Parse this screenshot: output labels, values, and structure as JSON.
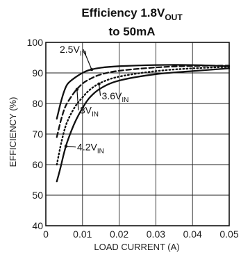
{
  "chart_data": {
    "type": "line",
    "title": {
      "line1": "Efficiency 1.8V",
      "line1_sub": "OUT",
      "line2": "to 50mA"
    },
    "xlabel": "LOAD CURRENT (A)",
    "ylabel": "EFFICIENCY (%)",
    "xlim": [
      0,
      0.05
    ],
    "ylim": [
      40,
      100
    ],
    "x_ticks": [
      "0",
      "0.01",
      "0.02",
      "0.03",
      "0.04",
      "0.05"
    ],
    "y_ticks": [
      "40",
      "50",
      "60",
      "70",
      "80",
      "90",
      "100"
    ],
    "grid": true,
    "series": [
      {
        "name": "2.5V_IN",
        "style": "solid",
        "points": [
          [
            0.003,
            75
          ],
          [
            0.004,
            80
          ],
          [
            0.005,
            84
          ],
          [
            0.006,
            86.5
          ],
          [
            0.008,
            88.5
          ],
          [
            0.01,
            90
          ],
          [
            0.012,
            91
          ],
          [
            0.015,
            91.7
          ],
          [
            0.02,
            92.2
          ],
          [
            0.03,
            92.6
          ],
          [
            0.04,
            92.6
          ],
          [
            0.05,
            92.2
          ]
        ]
      },
      {
        "name": "3V_IN",
        "style": "dashed",
        "points": [
          [
            0.003,
            69
          ],
          [
            0.004,
            74
          ],
          [
            0.005,
            78
          ],
          [
            0.006,
            80.5
          ],
          [
            0.008,
            84
          ],
          [
            0.01,
            86.5
          ],
          [
            0.012,
            88
          ],
          [
            0.015,
            89.5
          ],
          [
            0.02,
            90.7
          ],
          [
            0.03,
            91.8
          ],
          [
            0.04,
            92.3
          ],
          [
            0.05,
            92.4
          ]
        ]
      },
      {
        "name": "3.6V_IN",
        "style": "dotted",
        "points": [
          [
            0.003,
            60
          ],
          [
            0.004,
            66
          ],
          [
            0.005,
            71
          ],
          [
            0.006,
            74.5
          ],
          [
            0.008,
            79
          ],
          [
            0.01,
            82
          ],
          [
            0.012,
            84.5
          ],
          [
            0.015,
            86.8
          ],
          [
            0.02,
            88.8
          ],
          [
            0.03,
            90.6
          ],
          [
            0.04,
            91.5
          ],
          [
            0.05,
            92
          ]
        ]
      },
      {
        "name": "4.2V_IN",
        "style": "solid",
        "points": [
          [
            0.003,
            54.5
          ],
          [
            0.004,
            59
          ],
          [
            0.005,
            64
          ],
          [
            0.006,
            68
          ],
          [
            0.008,
            74
          ],
          [
            0.01,
            78.5
          ],
          [
            0.012,
            82
          ],
          [
            0.015,
            85
          ],
          [
            0.02,
            87.5
          ],
          [
            0.03,
            89.6
          ],
          [
            0.04,
            90.6
          ],
          [
            0.05,
            91.5
          ]
        ]
      }
    ],
    "annotations": [
      {
        "main": "2.5V",
        "sub": "IN",
        "series": "2.5V_IN",
        "at_x": 0.0125
      },
      {
        "main": "3.6V",
        "sub": "IN",
        "series": "3.6V_IN",
        "at_x": 0.0145
      },
      {
        "main": "3V",
        "sub": "IN",
        "series": "3V_IN",
        "at_x": 0.0085
      },
      {
        "main": "4.2V",
        "sub": "IN",
        "series": "4.2V_IN",
        "at_x": 0.0055
      }
    ]
  }
}
